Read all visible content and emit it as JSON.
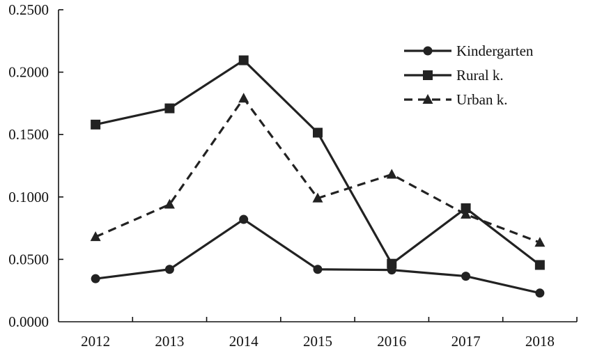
{
  "chart_data": {
    "type": "line",
    "title": "",
    "xlabel": "",
    "ylabel": "",
    "categories": [
      "2012",
      "2013",
      "2014",
      "2015",
      "2016",
      "2017",
      "2018"
    ],
    "ylim": [
      0,
      0.25
    ],
    "yticks": [
      "0.0000",
      "0.0500",
      "0.1000",
      "0.1500",
      "0.2000",
      "0.2500"
    ],
    "ytick_values": [
      0,
      0.05,
      0.1,
      0.15,
      0.2,
      0.25
    ],
    "grid": false,
    "legend_position": "top-right",
    "series": [
      {
        "name": "Kindergarten",
        "marker": "circle",
        "line": "solid",
        "color": "#222222",
        "values": [
          0.0345,
          0.042,
          0.082,
          0.042,
          0.0415,
          0.0365,
          0.023
        ]
      },
      {
        "name": "Rural k.",
        "marker": "square",
        "line": "solid",
        "color": "#222222",
        "values": [
          0.158,
          0.171,
          0.2095,
          0.1515,
          0.0465,
          0.091,
          0.0455
        ]
      },
      {
        "name": "Urban k.",
        "marker": "triangle",
        "line": "dashed",
        "color": "#222222",
        "values": [
          0.068,
          0.094,
          0.179,
          0.099,
          0.118,
          0.086,
          0.0635
        ]
      }
    ]
  }
}
